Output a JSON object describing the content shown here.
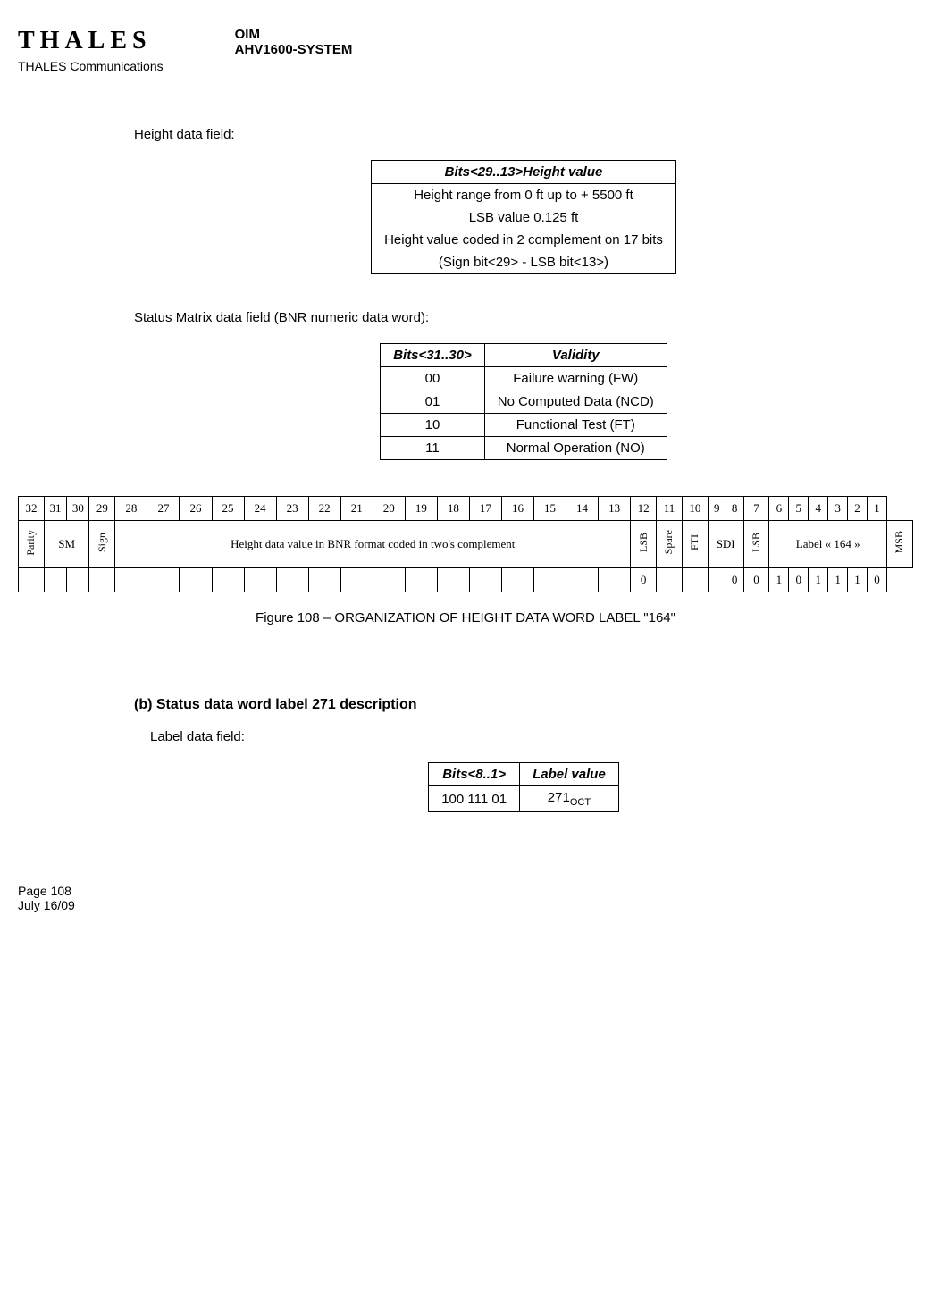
{
  "header": {
    "logo": "THALES",
    "subheader": "THALES Communications",
    "right1": "OIM",
    "right2": "AHV1600-SYSTEM"
  },
  "section1": {
    "title": "Height data field:",
    "table_header": "Bits<29..13>Height value",
    "rows": [
      "Height range from 0 ft up to + 5500 ft",
      "LSB value 0.125 ft",
      "Height value coded in 2 complement on 17 bits",
      "(Sign bit<29> - LSB bit<13>)"
    ]
  },
  "section2": {
    "title": "Status Matrix data field (BNR numeric data word):",
    "th1": "Bits<31..30>",
    "th2": "Validity",
    "rows": [
      {
        "bits": "00",
        "val": "Failure warning (FW)"
      },
      {
        "bits": "01",
        "val": "No Computed Data (NCD)"
      },
      {
        "bits": "10",
        "val": "Functional Test (FT)"
      },
      {
        "bits": "11",
        "val": "Normal Operation (NO)"
      }
    ]
  },
  "bittable": {
    "bits": [
      "32",
      "31",
      "30",
      "29",
      "28",
      "27",
      "26",
      "25",
      "24",
      "23",
      "22",
      "21",
      "20",
      "19",
      "18",
      "17",
      "16",
      "15",
      "14",
      "13",
      "12",
      "11",
      "10",
      "9",
      "8",
      "7",
      "6",
      "5",
      "4",
      "3",
      "2",
      "1"
    ],
    "row2": {
      "parity": "Parity",
      "sm": "SM",
      "sign": "Sign",
      "height": "Height data value in BNR format coded in two's complement",
      "lsb1": "LSB",
      "spare": "Spare",
      "fti": "FTI",
      "sdi": "SDI",
      "lsb2": "LSB",
      "label": "Label « 164 »",
      "msb": "MSB"
    },
    "row3": [
      "",
      "",
      "",
      "",
      "",
      "",
      "",
      "",
      "",
      "",
      "",
      "",
      "",
      "",
      "",
      "",
      "",
      "",
      "",
      "",
      "0",
      "",
      "",
      "",
      "0",
      "0",
      "1",
      "0",
      "1",
      "1",
      "1",
      "0"
    ]
  },
  "figure_caption": "Figure 108 – ORGANIZATION OF HEIGHT DATA WORD LABEL \"164\"",
  "subsection": {
    "header": "(b)  Status data word label 271 description",
    "label_text": "Label data field:",
    "th1": "Bits<8..1>",
    "th2": "Label value",
    "bits": "100 111 01",
    "value": "271",
    "value_sub": "OCT"
  },
  "footer": {
    "page": "Page 108",
    "date": "July 16/09"
  }
}
